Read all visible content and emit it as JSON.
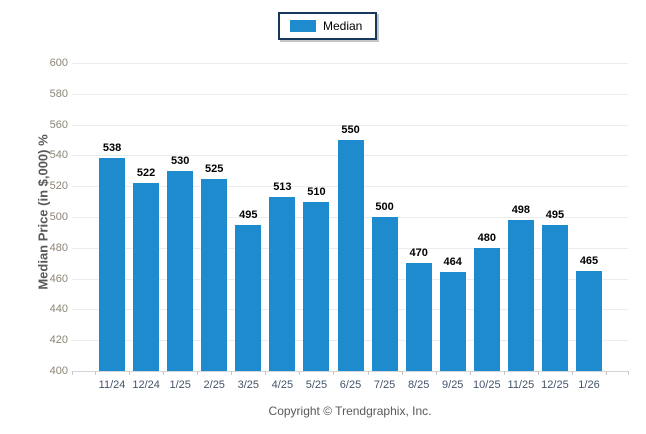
{
  "legend": {
    "border_color": "#17375d",
    "items": [
      {
        "label": "Median",
        "color": "#1d8bce"
      }
    ]
  },
  "footer": {
    "copyright": "Copyright © Trendgraphix, Inc."
  },
  "chart_data": {
    "type": "bar",
    "title": "",
    "categories": [
      "11/24",
      "12/24",
      "1/25",
      "2/25",
      "3/25",
      "4/25",
      "5/25",
      "6/25",
      "7/25",
      "8/25",
      "9/25",
      "10/25",
      "11/25",
      "12/25",
      "1/26"
    ],
    "series": [
      {
        "name": "Median",
        "color": "#1d8bce",
        "values": [
          538,
          522,
          530,
          525,
          495,
          513,
          510,
          550,
          500,
          470,
          464,
          480,
          498,
          495,
          465
        ]
      }
    ],
    "value_labels": true,
    "xlabel": "",
    "ylabel": "Median Price (in $,000) %",
    "ylim": [
      400,
      600
    ],
    "ytick_step": 20,
    "grid": true,
    "grid_color": "#ececec",
    "legend_position": "top-center"
  }
}
